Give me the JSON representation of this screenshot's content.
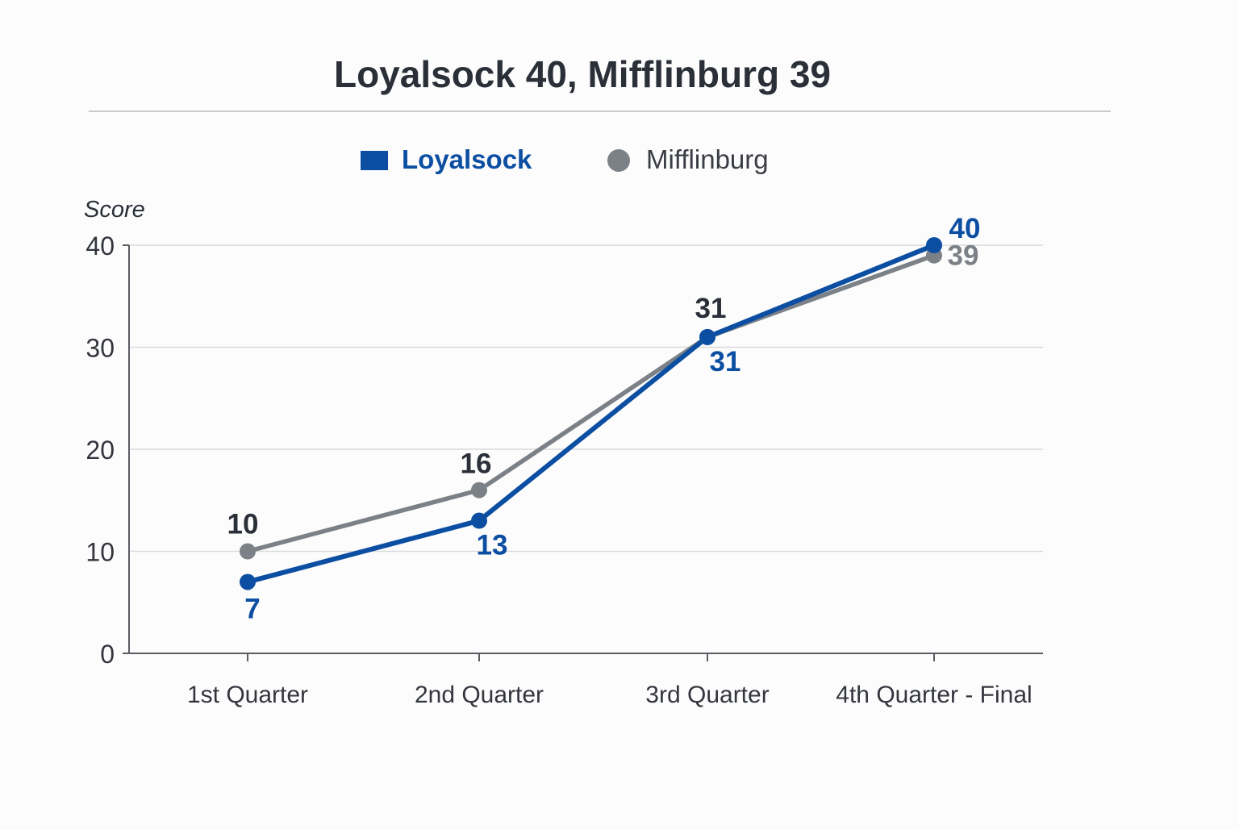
{
  "chart_data": {
    "type": "line",
    "title": "Loyalsock 40, Mifflinburg 39",
    "xlabel": "",
    "ylabel": "Score",
    "categories": [
      "1st Quarter",
      "2nd Quarter",
      "3rd Quarter",
      "4th Quarter - Final"
    ],
    "ylim": [
      0,
      40
    ],
    "yticks": [
      0,
      10,
      20,
      30,
      40
    ],
    "grid": true,
    "legend_position": "top",
    "series": [
      {
        "name": "Loyalsock",
        "color": "#0b4ea2",
        "values": [
          7,
          13,
          31,
          40
        ],
        "labels": [
          "7",
          "13",
          "31",
          "40"
        ],
        "marker": "square"
      },
      {
        "name": "Mifflinburg",
        "color": "#7c8187",
        "values": [
          10,
          16,
          31,
          39
        ],
        "labels": [
          "10",
          "16",
          "31",
          "39"
        ],
        "marker": "circle"
      }
    ]
  }
}
